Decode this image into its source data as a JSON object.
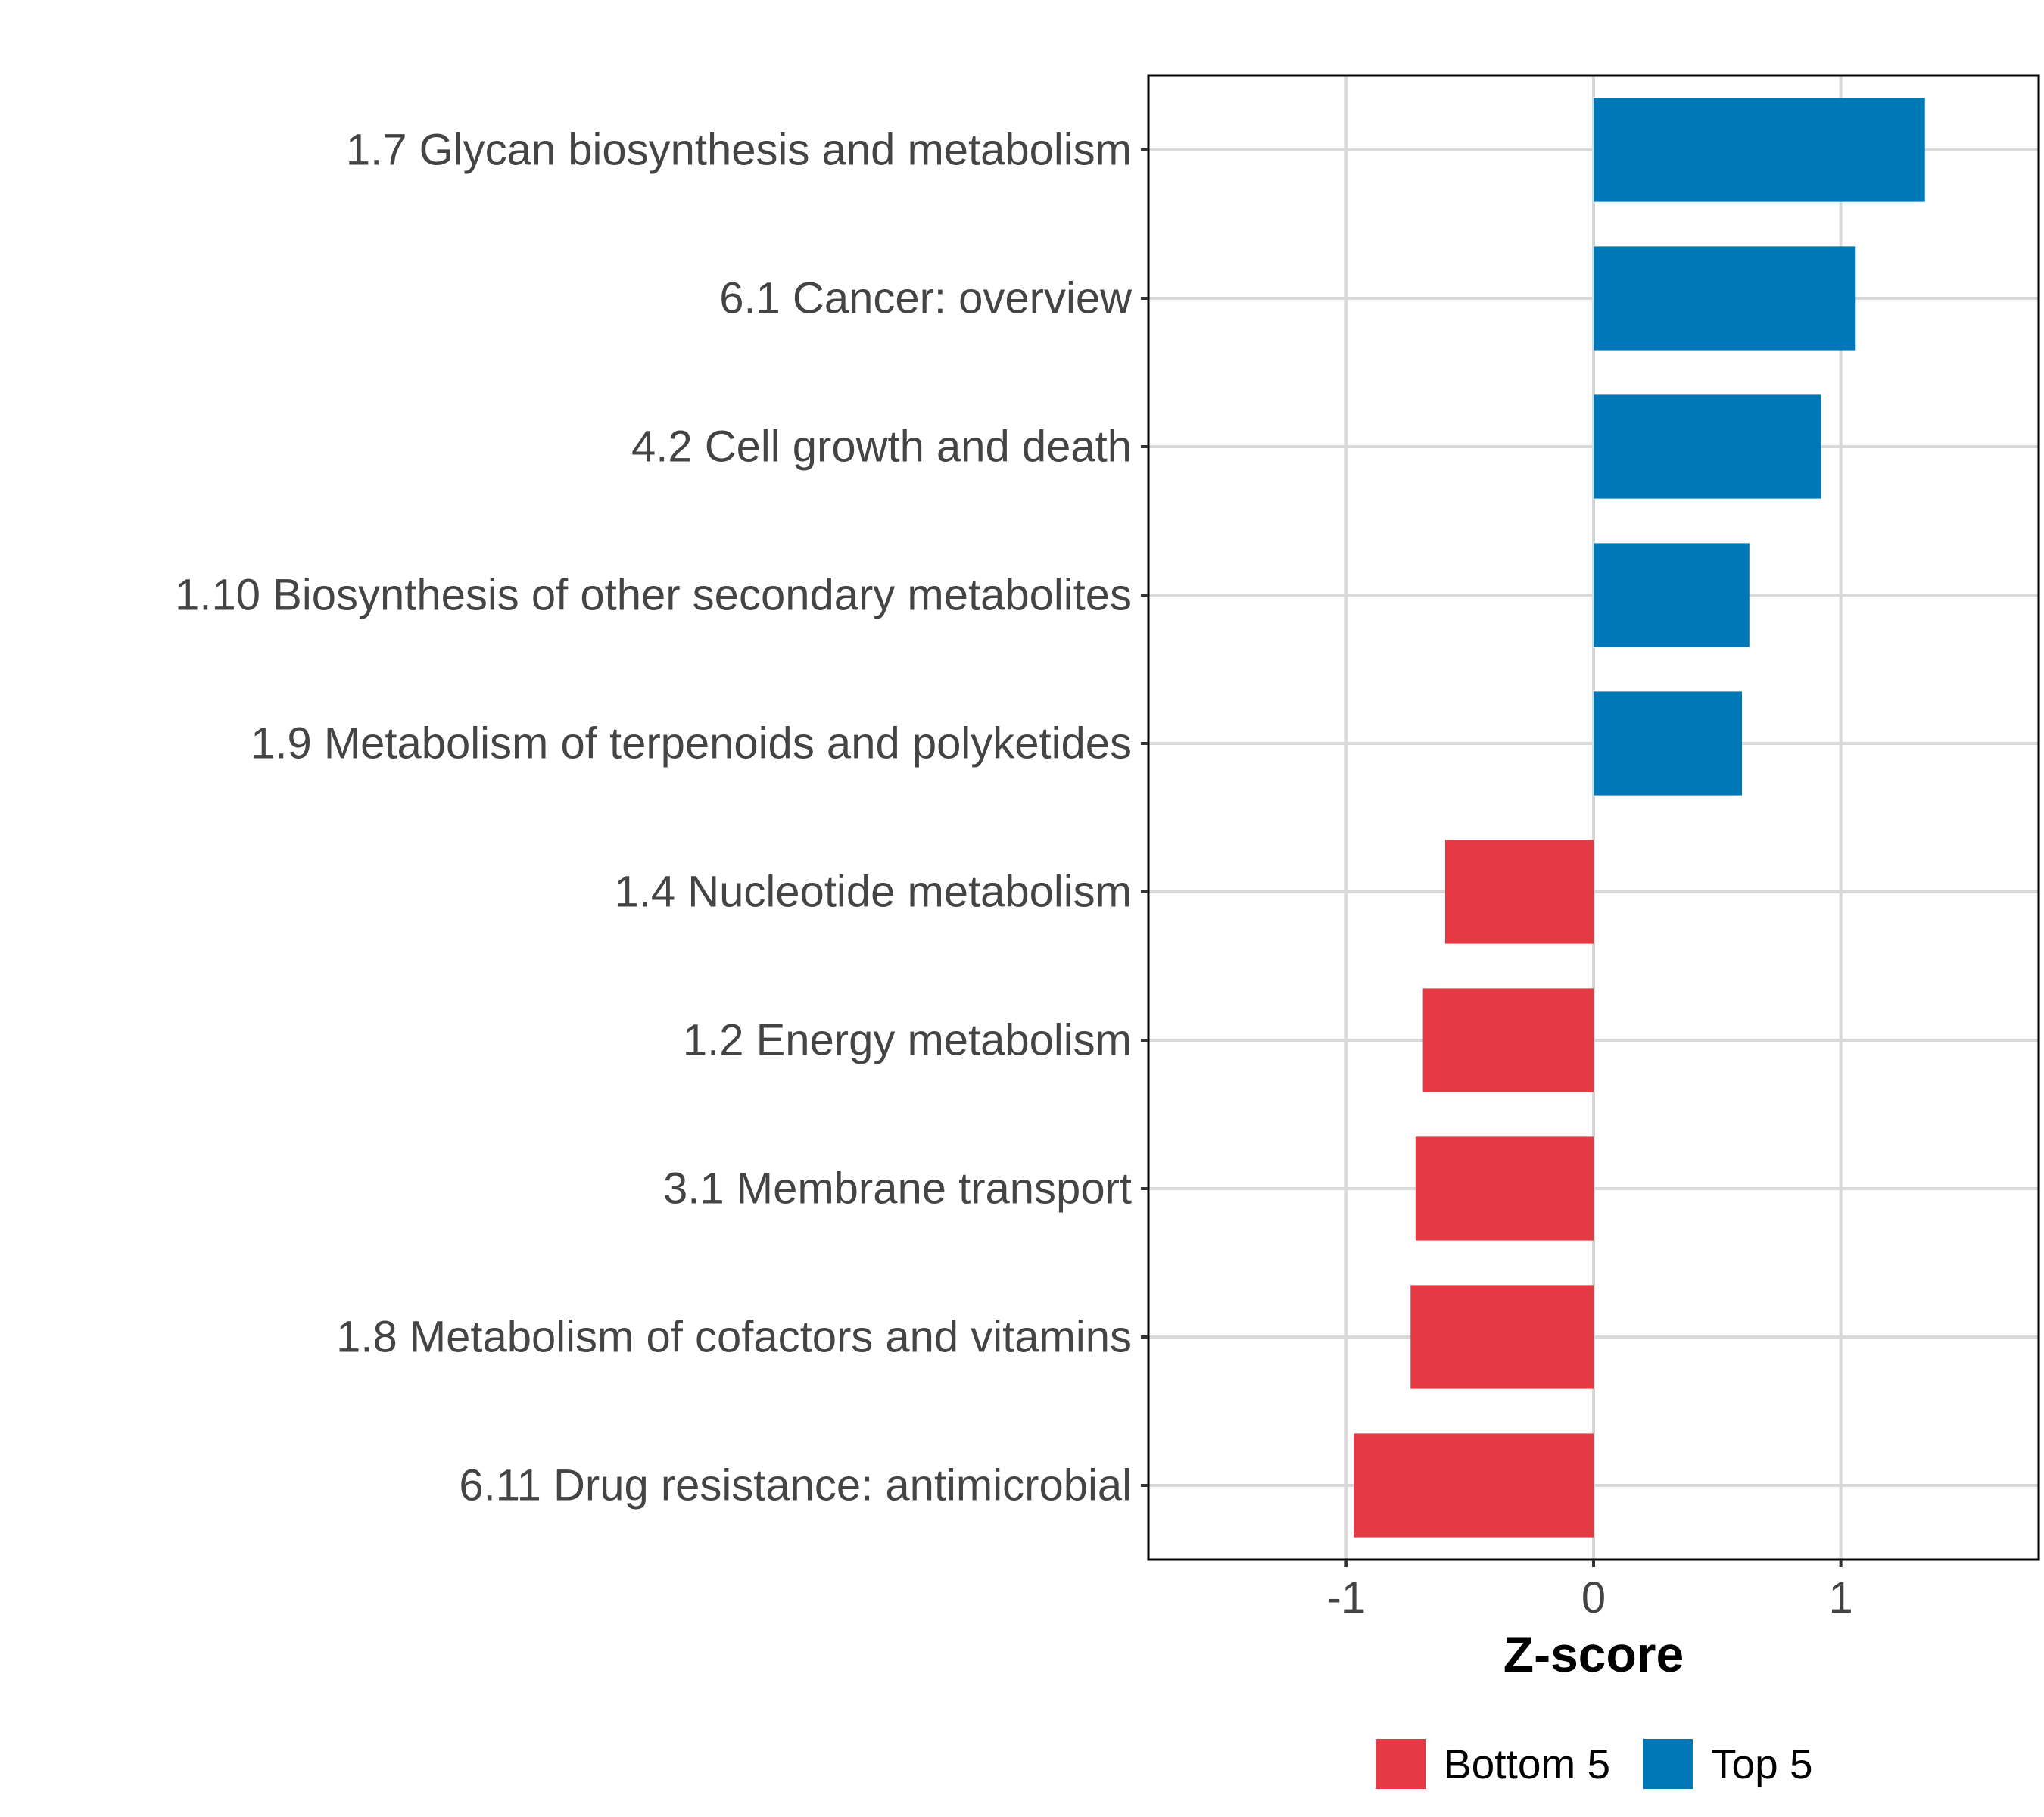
{
  "chart_data": {
    "type": "bar",
    "orientation": "horizontal",
    "title": "",
    "xlabel": "Z-score",
    "ylabel": "",
    "xlim": [
      -1.8,
      1.8
    ],
    "xticks": [
      -1,
      0,
      1
    ],
    "xtick_labels": [
      "-1",
      "0",
      "1"
    ],
    "grid": true,
    "legend_position": "bottom",
    "categories": [
      "1.7 Glycan biosynthesis and metabolism",
      "6.1 Cancer: overview",
      "4.2 Cell growth and death",
      "1.10 Biosynthesis of other secondary metabolites",
      "1.9 Metabolism of terpenoids and polyketides",
      "1.4 Nucleotide metabolism",
      "1.2 Energy metabolism",
      "3.1 Membrane transport",
      "1.8 Metabolism of cofactors and vitamins",
      "6.11 Drug resistance: antimicrobial"
    ],
    "values": [
      1.34,
      1.06,
      0.92,
      0.63,
      0.6,
      -0.6,
      -0.69,
      -0.72,
      -0.74,
      -0.97
    ],
    "groups": [
      "Top 5",
      "Top 5",
      "Top 5",
      "Top 5",
      "Top 5",
      "Bottom 5",
      "Bottom 5",
      "Bottom 5",
      "Bottom 5",
      "Bottom 5"
    ],
    "legend": [
      {
        "name": "Bottom 5",
        "color": "#e63946"
      },
      {
        "name": "Top 5",
        "color": "#0077b6"
      }
    ]
  }
}
